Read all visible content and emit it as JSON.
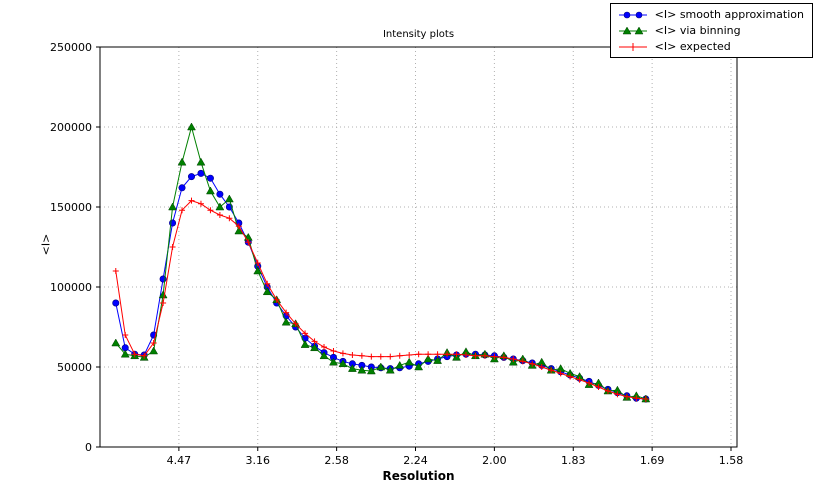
{
  "chart_data": {
    "type": "line",
    "title": "Intensity plots",
    "xlabel": "Resolution",
    "ylabel": "<I>",
    "grid": true,
    "legend_position": "top-right",
    "x_axis": {
      "unit": "1/d^2 (labels shown as d-spacing)",
      "range": [
        0,
        0.4038
      ],
      "ticks": [
        0.05,
        0.1,
        0.15,
        0.2,
        0.25,
        0.3,
        0.35,
        0.4
      ],
      "tick_labels": [
        "4.47",
        "3.16",
        "2.58",
        "2.24",
        "2.00",
        "1.83",
        "1.69",
        "1.58"
      ]
    },
    "y_axis": {
      "range": [
        0,
        250000
      ],
      "ticks": [
        0,
        50000,
        100000,
        150000,
        200000,
        250000
      ],
      "tick_labels": [
        "0",
        "50000",
        "100000",
        "150000",
        "200000",
        "250000"
      ]
    },
    "x": [
      0.01,
      0.016,
      0.022,
      0.028,
      0.034,
      0.04,
      0.046,
      0.052,
      0.058,
      0.064,
      0.07,
      0.076,
      0.082,
      0.088,
      0.094,
      0.1,
      0.106,
      0.112,
      0.118,
      0.124,
      0.13,
      0.136,
      0.142,
      0.148,
      0.154,
      0.16,
      0.166,
      0.172,
      0.178,
      0.184,
      0.19,
      0.196,
      0.202,
      0.208,
      0.214,
      0.22,
      0.226,
      0.232,
      0.238,
      0.244,
      0.25,
      0.256,
      0.262,
      0.268,
      0.274,
      0.28,
      0.286,
      0.292,
      0.298,
      0.304,
      0.31,
      0.316,
      0.322,
      0.328,
      0.334,
      0.34,
      0.346
    ],
    "series": [
      {
        "name": "<I> smooth approximation",
        "color": "#0000ff",
        "marker": "circle",
        "values": [
          90000,
          62000,
          58000,
          57500,
          70000,
          105000,
          140000,
          162000,
          169000,
          171000,
          168000,
          158000,
          150000,
          140000,
          128000,
          113000,
          100000,
          90000,
          82000,
          75000,
          68000,
          63000,
          59000,
          56000,
          53500,
          52000,
          51000,
          50000,
          49500,
          49000,
          49500,
          50500,
          52000,
          53500,
          55000,
          56500,
          57500,
          58000,
          58000,
          57500,
          57000,
          56000,
          55000,
          54000,
          52500,
          51000,
          49000,
          47000,
          45000,
          43000,
          41000,
          38500,
          36000,
          34000,
          32000,
          30500,
          30000
        ]
      },
      {
        "name": "<I> via binning",
        "color": "#008000",
        "marker": "triangle",
        "values": [
          65000,
          58000,
          57000,
          56000,
          60000,
          95000,
          150000,
          178000,
          200000,
          178000,
          160000,
          150000,
          155000,
          135000,
          131000,
          110000,
          97000,
          92000,
          78000,
          77000,
          64000,
          62000,
          57000,
          53000,
          52000,
          49000,
          48000,
          47500,
          50000,
          48000,
          51000,
          53000,
          50000,
          55000,
          54000,
          59000,
          56000,
          59500,
          57000,
          58000,
          55000,
          57000,
          53000,
          55000,
          51000,
          53000,
          48000,
          49000,
          46000,
          44000,
          39000,
          40000,
          35000,
          35500,
          31000,
          32000,
          30000
        ]
      },
      {
        "name": "<I> expected",
        "color": "#ff0000",
        "marker": "plus",
        "values": [
          110000,
          70000,
          58000,
          57000,
          65000,
          90000,
          125000,
          148000,
          154000,
          152000,
          148000,
          145000,
          143000,
          138000,
          128000,
          115000,
          102000,
          92000,
          84000,
          77000,
          71000,
          66000,
          62500,
          60000,
          58500,
          57500,
          57000,
          56500,
          56500,
          56500,
          57000,
          57500,
          58000,
          58000,
          58000,
          58000,
          58000,
          57500,
          57000,
          57000,
          56500,
          56000,
          55000,
          53500,
          52000,
          50000,
          48000,
          46000,
          44000,
          42000,
          40000,
          37500,
          35000,
          33000,
          31500,
          30500,
          30000
        ]
      }
    ]
  }
}
